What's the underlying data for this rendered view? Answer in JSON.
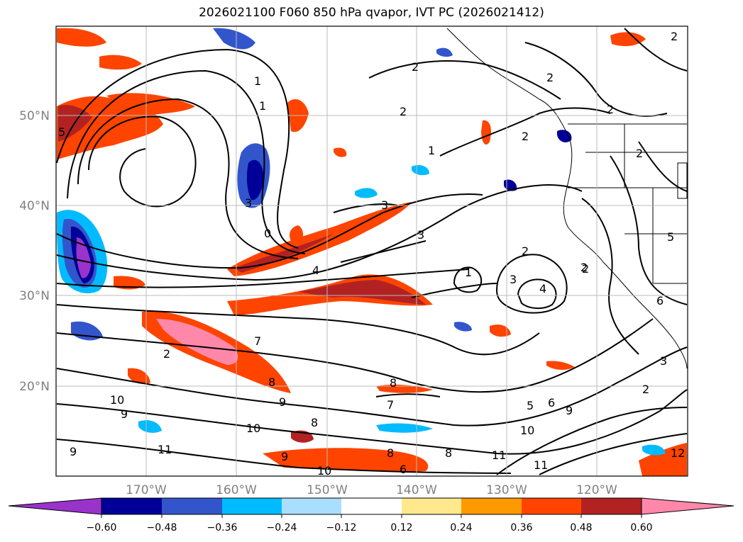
{
  "title": "2026021100 F060 850 hPa qvapor, IVT PC (2026021412)",
  "map": {
    "lon_labels": [
      "170°W",
      "160°W",
      "150°W",
      "140°W",
      "130°W",
      "120°W"
    ],
    "lat_labels": [
      "50°N",
      "40°N",
      "30°N",
      "20°N"
    ],
    "grid_color": "#bbbbbb"
  },
  "contour_labels": [
    "2",
    "2",
    "2",
    "2",
    "2",
    "2",
    "1",
    "2",
    "3",
    "3",
    "4",
    "1",
    "3",
    "4",
    "2",
    "2",
    "3",
    "5",
    "6",
    "7",
    "8",
    "9",
    "10",
    "9",
    "11",
    "12",
    "10",
    "10",
    "9",
    "8",
    "8",
    "9",
    "6",
    "8",
    "7",
    "6",
    "8",
    "10",
    "11",
    "11",
    "9",
    "2",
    "5",
    "1",
    "2",
    "3",
    "1",
    "0",
    "5",
    "2"
  ],
  "colorbar": {
    "ticks": [
      "−0.60",
      "−0.48",
      "−0.36",
      "−0.24",
      "−0.12",
      "0.12",
      "0.24",
      "0.36",
      "0.48",
      "0.60"
    ],
    "colors": {
      "under": "#9933cc",
      "bins": [
        "#000099",
        "#3355cc",
        "#00bbff",
        "#aadeff",
        "#ffffff",
        "#ffe98c",
        "#ff9900",
        "#ff4400",
        "#b22222",
        "#ff88aa"
      ]
    }
  }
}
